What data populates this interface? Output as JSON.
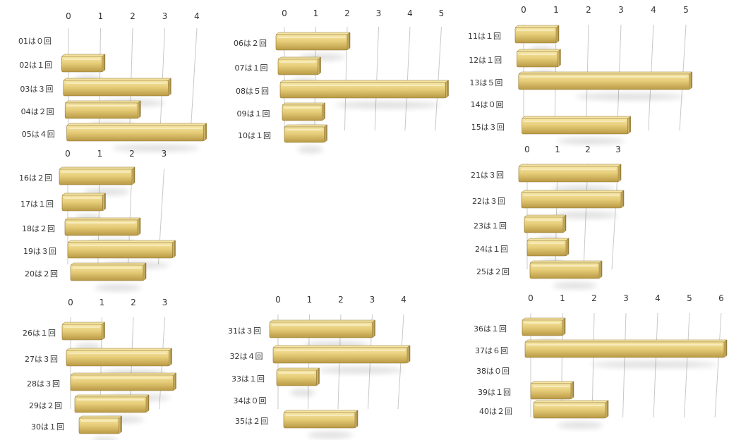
{
  "colors": {
    "bar_light": "#f6e6a4",
    "bar_mid": "#e6cc78",
    "bar_dark": "#b99a45",
    "bar_edge": "#8e7433",
    "gridline": "#c8c8c8",
    "label": "#333333"
  },
  "chart_data": [
    {
      "type": "bar",
      "orientation": "horizontal",
      "style": "3d",
      "categories": [
        "01は０回",
        "02は１回",
        "03は３回",
        "04は２回",
        "05は４回"
      ],
      "values": [
        0,
        1,
        3,
        2,
        4
      ],
      "xlim": [
        0,
        4
      ],
      "ticks": [
        0,
        1,
        2,
        3,
        4
      ]
    },
    {
      "type": "bar",
      "orientation": "horizontal",
      "style": "3d",
      "categories": [
        "06は２回",
        "07は１回",
        "08は５回",
        "09は１回",
        "10は１回"
      ],
      "values": [
        2,
        1,
        5,
        1,
        1
      ],
      "xlim": [
        0,
        5
      ],
      "ticks": [
        0,
        1,
        2,
        3,
        4,
        5
      ]
    },
    {
      "type": "bar",
      "orientation": "horizontal",
      "style": "3d",
      "categories": [
        "11は１回",
        "12は１回",
        "13は５回",
        "14は０回",
        "15は３回"
      ],
      "values": [
        1,
        1,
        5,
        0,
        3
      ],
      "xlim": [
        0,
        5
      ],
      "ticks": [
        0,
        1,
        2,
        3,
        4,
        5
      ]
    },
    {
      "type": "bar",
      "orientation": "horizontal",
      "style": "3d",
      "categories": [
        "16は２回",
        "17は１回",
        "18は２回",
        "19は３回",
        "20は２回"
      ],
      "values": [
        2,
        1,
        2,
        3,
        2
      ],
      "xlim": [
        0,
        3
      ],
      "ticks": [
        0,
        1,
        2,
        3
      ]
    },
    {
      "type": "bar",
      "orientation": "horizontal",
      "style": "3d",
      "categories": [
        "21は３回",
        "22は３回",
        "23は１回",
        "24は１回",
        "25は２回"
      ],
      "values": [
        3,
        3,
        1,
        1,
        2
      ],
      "xlim": [
        0,
        3
      ],
      "ticks": [
        0,
        1,
        2,
        3
      ]
    },
    {
      "type": "bar",
      "orientation": "horizontal",
      "style": "3d",
      "categories": [
        "26は１回",
        "27は３回",
        "28は３回",
        "29は２回",
        "30は１回"
      ],
      "values": [
        1,
        3,
        3,
        2,
        1
      ],
      "xlim": [
        0,
        3
      ],
      "ticks": [
        0,
        1,
        2,
        3
      ]
    },
    {
      "type": "bar",
      "orientation": "horizontal",
      "style": "3d",
      "categories": [
        "31は３回",
        "32は４回",
        "33は１回",
        "34は０回",
        "35は２回"
      ],
      "values": [
        3,
        4,
        1,
        0,
        2
      ],
      "xlim": [
        0,
        4
      ],
      "ticks": [
        0,
        1,
        2,
        3,
        4
      ]
    },
    {
      "type": "bar",
      "orientation": "horizontal",
      "style": "3d",
      "categories": [
        "36は１回",
        "37は６回",
        "38は０回",
        "39は１回",
        "40は２回"
      ],
      "values": [
        1,
        6,
        0,
        1,
        2
      ],
      "xlim": [
        0,
        6
      ],
      "ticks": [
        0,
        1,
        2,
        3,
        4,
        5,
        6
      ]
    }
  ]
}
